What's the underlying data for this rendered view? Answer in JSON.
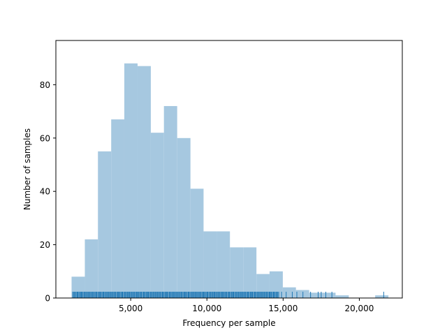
{
  "chart_data": {
    "type": "bar",
    "title": "",
    "xlabel": "Frequency per sample",
    "ylabel": "Number of samples",
    "xlim": [
      90,
      22820
    ],
    "ylim": [
      0,
      96.6
    ],
    "xticks": [
      5000,
      10000,
      15000,
      20000
    ],
    "xtick_labels": [
      "5,000",
      "10,000",
      "15,000",
      "20,000"
    ],
    "yticks": [
      0,
      20,
      40,
      60,
      80
    ],
    "ytick_labels": [
      "0",
      "20",
      "40",
      "60",
      "80"
    ],
    "grid": false,
    "bar_color": "#a6c8e0",
    "rug_color": "#1f77b4",
    "bin_edges": [
      1120,
      1990,
      2850,
      3720,
      4580,
      5450,
      6320,
      7180,
      8050,
      8920,
      9780,
      10650,
      11510,
      12380,
      13250,
      14110,
      14980,
      15840,
      16710,
      17580,
      18440,
      19310,
      20170,
      21040,
      21910
    ],
    "counts": [
      8,
      22,
      55,
      67,
      88,
      87,
      62,
      72,
      60,
      41,
      25,
      25,
      19,
      19,
      9,
      10,
      4,
      3,
      2,
      2,
      1,
      0,
      0,
      1
    ],
    "rug_dense_range": [
      1200,
      14700
    ],
    "rug_sparse_x": [
      14900,
      15200,
      15600,
      15900,
      16300,
      16800,
      17300,
      17500,
      17800,
      18200,
      21600
    ]
  }
}
